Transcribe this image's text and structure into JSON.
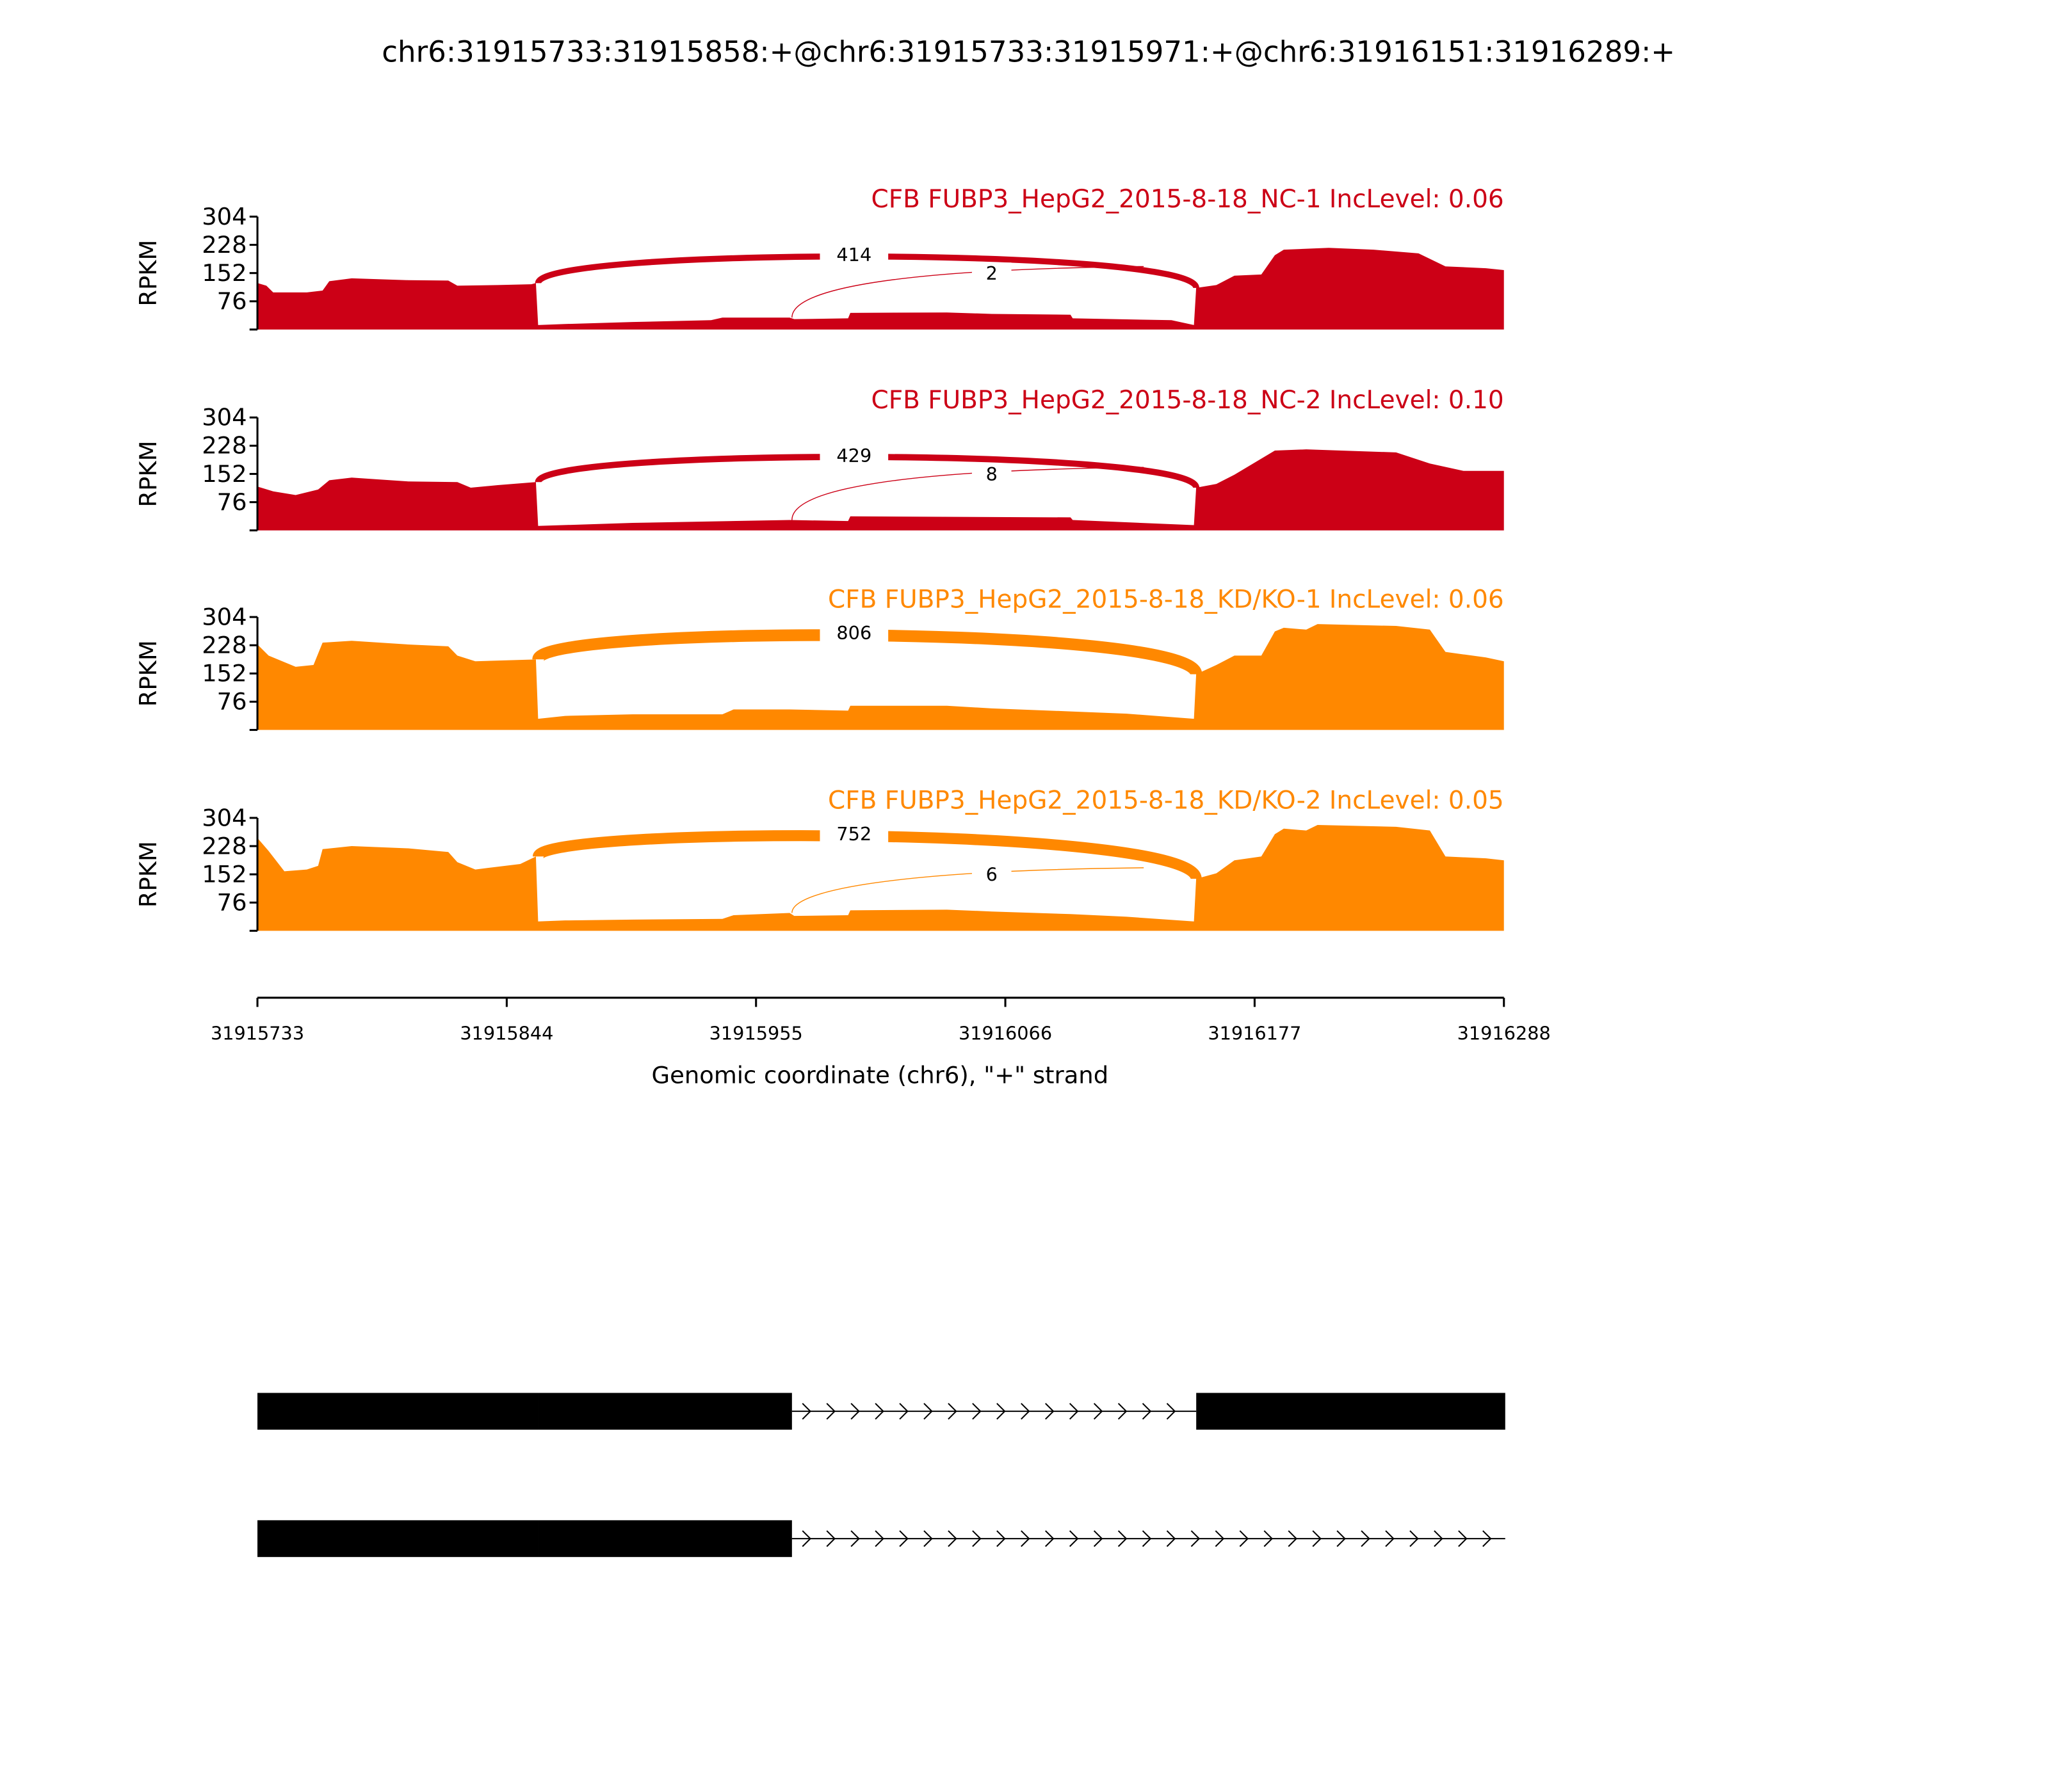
{
  "chart_data": {
    "type": "area",
    "title": "chr6:31915733:31915858:+@chr6:31915733:31915971:+@chr6:31916151:31916289:+",
    "ylabel": "RPKM",
    "xlabel": "Genomic coordinate (chr6), \"+\" strand",
    "xlim": [
      31915733,
      31916288
    ],
    "ylim": [
      0,
      304
    ],
    "yticks": [
      0,
      76,
      152,
      228,
      304
    ],
    "ytick_labels": [
      "",
      "76",
      "152",
      "228",
      "304"
    ],
    "xticks": [
      31915733,
      31915844,
      31915955,
      31916066,
      31916177,
      31916288
    ],
    "xtick_labels": [
      "31915733",
      "31915844",
      "31915955",
      "31916066",
      "31916177",
      "31916288"
    ],
    "panels": [
      {
        "label": "CFB FUBP3_HepG2_2015-8-18_NC-1 IncLevel: 0.06",
        "color": "#cc0016",
        "coverage": [
          [
            31915733,
            125
          ],
          [
            31915737,
            118
          ],
          [
            31915740,
            100
          ],
          [
            31915755,
            100
          ],
          [
            31915762,
            105
          ],
          [
            31915765,
            130
          ],
          [
            31915775,
            138
          ],
          [
            31915800,
            133
          ],
          [
            31915818,
            132
          ],
          [
            31915822,
            118
          ],
          [
            31915840,
            120
          ],
          [
            31915855,
            122
          ],
          [
            31915857,
            125
          ],
          [
            31915858,
            12
          ],
          [
            31915870,
            15
          ],
          [
            31915900,
            20
          ],
          [
            31915935,
            25
          ],
          [
            31915940,
            32
          ],
          [
            31915970,
            32
          ],
          [
            31915972,
            28
          ],
          [
            31915996,
            30
          ],
          [
            31915997,
            45
          ],
          [
            31916040,
            46
          ],
          [
            31916060,
            42
          ],
          [
            31916095,
            40
          ],
          [
            31916096,
            30
          ],
          [
            31916140,
            25
          ],
          [
            31916150,
            12
          ],
          [
            31916151,
            112
          ],
          [
            31916160,
            120
          ],
          [
            31916168,
            145
          ],
          [
            31916180,
            148
          ],
          [
            31916186,
            200
          ],
          [
            31916190,
            215
          ],
          [
            31916210,
            220
          ],
          [
            31916230,
            215
          ],
          [
            31916250,
            205
          ],
          [
            31916262,
            170
          ],
          [
            31916280,
            165
          ],
          [
            31916288,
            160
          ]
        ],
        "junctions": [
          {
            "start": 31915858,
            "end": 31916151,
            "count": "414"
          },
          {
            "start": 31915971,
            "end": 31916151,
            "count": "2"
          }
        ]
      },
      {
        "label": "CFB FUBP3_HepG2_2015-8-18_NC-2 IncLevel: 0.10",
        "color": "#cc0016",
        "coverage": [
          [
            31915733,
            118
          ],
          [
            31915740,
            105
          ],
          [
            31915750,
            95
          ],
          [
            31915760,
            110
          ],
          [
            31915765,
            135
          ],
          [
            31915775,
            142
          ],
          [
            31915800,
            132
          ],
          [
            31915822,
            130
          ],
          [
            31915828,
            115
          ],
          [
            31915840,
            122
          ],
          [
            31915857,
            130
          ],
          [
            31915858,
            12
          ],
          [
            31915900,
            20
          ],
          [
            31915970,
            28
          ],
          [
            31915996,
            25
          ],
          [
            31915997,
            38
          ],
          [
            31916095,
            35
          ],
          [
            31916096,
            28
          ],
          [
            31916150,
            14
          ],
          [
            31916151,
            115
          ],
          [
            31916160,
            125
          ],
          [
            31916168,
            150
          ],
          [
            31916186,
            215
          ],
          [
            31916200,
            218
          ],
          [
            31916240,
            210
          ],
          [
            31916255,
            180
          ],
          [
            31916270,
            160
          ],
          [
            31916288,
            160
          ]
        ],
        "junctions": [
          {
            "start": 31915858,
            "end": 31916151,
            "count": "429"
          },
          {
            "start": 31915971,
            "end": 31916151,
            "count": "8"
          }
        ]
      },
      {
        "label": "CFB FUBP3_HepG2_2015-8-18_KD/KO-1 IncLevel: 0.06",
        "color": "#ff8800",
        "coverage": [
          [
            31915733,
            230
          ],
          [
            31915738,
            200
          ],
          [
            31915750,
            170
          ],
          [
            31915758,
            175
          ],
          [
            31915762,
            235
          ],
          [
            31915775,
            240
          ],
          [
            31915800,
            230
          ],
          [
            31915818,
            225
          ],
          [
            31915822,
            200
          ],
          [
            31915830,
            185
          ],
          [
            31915857,
            190
          ],
          [
            31915858,
            30
          ],
          [
            31915870,
            38
          ],
          [
            31915900,
            42
          ],
          [
            31915940,
            42
          ],
          [
            31915945,
            55
          ],
          [
            31915970,
            55
          ],
          [
            31915996,
            52
          ],
          [
            31915997,
            65
          ],
          [
            31916040,
            65
          ],
          [
            31916060,
            58
          ],
          [
            31916095,
            50
          ],
          [
            31916120,
            44
          ],
          [
            31916150,
            30
          ],
          [
            31916151,
            150
          ],
          [
            31916160,
            175
          ],
          [
            31916168,
            200
          ],
          [
            31916180,
            200
          ],
          [
            31916186,
            265
          ],
          [
            31916190,
            275
          ],
          [
            31916200,
            270
          ],
          [
            31916205,
            285
          ],
          [
            31916240,
            280
          ],
          [
            31916255,
            270
          ],
          [
            31916262,
            210
          ],
          [
            31916280,
            195
          ],
          [
            31916288,
            185
          ]
        ],
        "junctions": [
          {
            "start": 31915858,
            "end": 31916151,
            "count": "806"
          }
        ]
      },
      {
        "label": "CFB FUBP3_HepG2_2015-8-18_KD/KO-2 IncLevel: 0.05",
        "color": "#ff8800",
        "coverage": [
          [
            31915733,
            250
          ],
          [
            31915738,
            215
          ],
          [
            31915745,
            160
          ],
          [
            31915755,
            165
          ],
          [
            31915760,
            175
          ],
          [
            31915762,
            220
          ],
          [
            31915775,
            228
          ],
          [
            31915800,
            222
          ],
          [
            31915818,
            212
          ],
          [
            31915822,
            185
          ],
          [
            31915830,
            165
          ],
          [
            31915850,
            180
          ],
          [
            31915857,
            200
          ],
          [
            31915858,
            25
          ],
          [
            31915870,
            28
          ],
          [
            31915900,
            30
          ],
          [
            31915940,
            32
          ],
          [
            31915945,
            42
          ],
          [
            31915970,
            48
          ],
          [
            31915972,
            40
          ],
          [
            31915996,
            42
          ],
          [
            31915997,
            55
          ],
          [
            31916040,
            57
          ],
          [
            31916060,
            52
          ],
          [
            31916095,
            45
          ],
          [
            31916120,
            38
          ],
          [
            31916150,
            25
          ],
          [
            31916151,
            140
          ],
          [
            31916160,
            155
          ],
          [
            31916168,
            190
          ],
          [
            31916180,
            200
          ],
          [
            31916186,
            260
          ],
          [
            31916190,
            275
          ],
          [
            31916200,
            270
          ],
          [
            31916205,
            285
          ],
          [
            31916240,
            280
          ],
          [
            31916255,
            270
          ],
          [
            31916262,
            200
          ],
          [
            31916280,
            195
          ],
          [
            31916288,
            190
          ]
        ],
        "junctions": [
          {
            "start": 31915858,
            "end": 31916151,
            "count": "752"
          },
          {
            "start": 31915971,
            "end": 31916151,
            "count": "6"
          }
        ]
      }
    ],
    "gene_tracks": [
      {
        "exons": [
          [
            31915733,
            31915858
          ],
          [
            31915858,
            31915971
          ],
          [
            31916151,
            31916289
          ]
        ],
        "line": [
          31915971,
          31916151
        ]
      },
      {
        "exons": [
          [
            31915733,
            31915858
          ],
          [
            31915858,
            31915971
          ]
        ],
        "line": [
          31915971,
          31916289
        ]
      }
    ]
  }
}
